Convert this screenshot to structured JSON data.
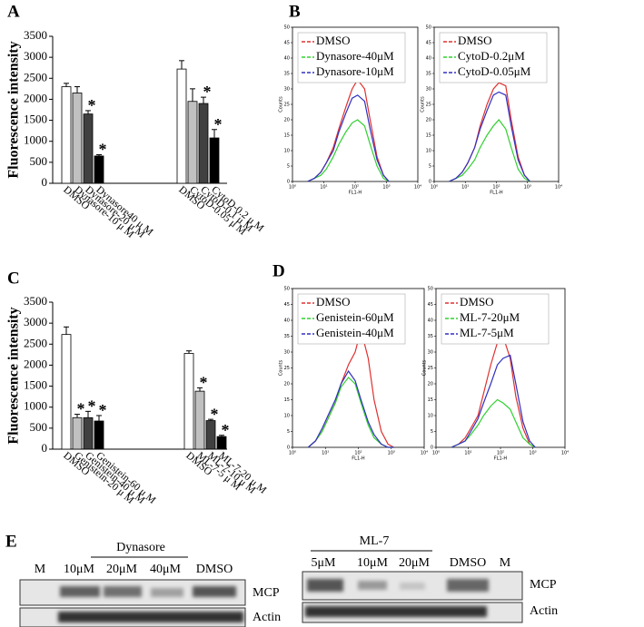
{
  "panel_labels": [
    "A",
    "B",
    "C",
    "D",
    "E"
  ],
  "chart_data": [
    {
      "type": "bar",
      "ylabel": "Fluorescence intensity",
      "ylim": [
        0,
        3500
      ],
      "yticks": [
        0,
        500,
        1000,
        1500,
        2000,
        2500,
        3000,
        3500
      ],
      "colors": [
        "#ffffff",
        "#c0c0c0",
        "#404040",
        "#000000"
      ],
      "groups": [
        {
          "categories": [
            "DMSO",
            "Dynasore-10 μ M",
            "Dynasore-20 μ M",
            "Dynasore40 μ M"
          ],
          "values": [
            2300,
            2150,
            1650,
            650
          ],
          "errors": [
            80,
            150,
            80,
            30
          ],
          "significance": [
            null,
            null,
            "*",
            "*"
          ]
        },
        {
          "categories": [
            "DMSO",
            "CytoD-0.05 μ M",
            "CytoD-0.1 μ M",
            "CytoD-0.2 μ M"
          ],
          "values": [
            2720,
            1950,
            1900,
            1080
          ],
          "errors": [
            200,
            300,
            150,
            200
          ],
          "significance": [
            null,
            null,
            "*",
            "*"
          ]
        }
      ]
    },
    {
      "type": "line",
      "ylabel": "Counts",
      "xlabel": "FL1-H",
      "log_x": true,
      "xlim": [
        1,
        10000
      ],
      "xticks": [
        {
          "value": 1,
          "label": "10⁰"
        },
        {
          "value": 10,
          "label": "10¹"
        },
        {
          "value": 100,
          "label": "10²"
        },
        {
          "value": 1000,
          "label": "10³"
        },
        {
          "value": 10000,
          "label": "10⁴"
        }
      ],
      "ylim": [
        0,
        50
      ],
      "yticks": [
        0,
        5,
        10,
        15,
        20,
        25,
        30,
        35,
        40,
        45,
        50
      ],
      "x": [
        3,
        5,
        8,
        12,
        20,
        30,
        50,
        80,
        120,
        200,
        300,
        500,
        800,
        1200
      ],
      "series": [
        {
          "name": "DMSO",
          "color": "#e03030",
          "values": [
            0,
            1,
            3,
            6,
            11,
            17,
            24,
            30,
            33,
            30,
            20,
            8,
            2,
            0
          ]
        },
        {
          "name": "Dynasore-40μM",
          "color": "#30d030",
          "values": [
            0,
            1,
            2,
            4,
            8,
            12,
            16,
            19,
            20,
            18,
            12,
            5,
            1,
            0
          ]
        },
        {
          "name": "Dynasore-10μM",
          "color": "#3030c0",
          "values": [
            0,
            1,
            3,
            6,
            10,
            16,
            22,
            27,
            28,
            26,
            17,
            7,
            2,
            0
          ]
        }
      ]
    },
    {
      "type": "line",
      "ylabel": "Counts",
      "xlabel": "FL1-H",
      "log_x": true,
      "xlim": [
        1,
        10000
      ],
      "xticks": [
        {
          "value": 1,
          "label": "10⁰"
        },
        {
          "value": 10,
          "label": "10¹"
        },
        {
          "value": 100,
          "label": "10²"
        },
        {
          "value": 1000,
          "label": "10³"
        },
        {
          "value": 10000,
          "label": "10⁴"
        }
      ],
      "ylim": [
        0,
        50
      ],
      "yticks": [
        0,
        5,
        10,
        15,
        20,
        25,
        30,
        35,
        40,
        45,
        50
      ],
      "x": [
        3,
        5,
        8,
        12,
        20,
        30,
        50,
        80,
        120,
        200,
        300,
        500,
        800,
        1200
      ],
      "series": [
        {
          "name": "DMSO",
          "color": "#e03030",
          "values": [
            0,
            1,
            3,
            6,
            11,
            18,
            25,
            30,
            32,
            31,
            20,
            8,
            2,
            0
          ]
        },
        {
          "name": "CytoD-0.2μM",
          "color": "#30d030",
          "values": [
            0,
            1,
            2,
            4,
            7,
            11,
            15,
            18,
            20,
            17,
            11,
            4,
            1,
            0
          ]
        },
        {
          "name": "CytoD-0.05μM",
          "color": "#3030c0",
          "values": [
            0,
            1,
            3,
            6,
            11,
            17,
            23,
            28,
            29,
            28,
            18,
            7,
            2,
            0
          ]
        }
      ]
    },
    {
      "type": "bar",
      "ylabel": "Fluorescence intensity",
      "ylim": [
        0,
        3500
      ],
      "yticks": [
        0,
        500,
        1000,
        1500,
        2000,
        2500,
        3000,
        3500
      ],
      "colors": [
        "#ffffff",
        "#c0c0c0",
        "#404040",
        "#000000"
      ],
      "groups": [
        {
          "categories": [
            "DMSO",
            "Genistein-20 μ M",
            "Genistein-40 μ M",
            "Genistein-60 μ M"
          ],
          "values": [
            2730,
            750,
            750,
            670
          ],
          "errors": [
            180,
            80,
            150,
            130
          ],
          "significance": [
            null,
            "*",
            "*",
            "*"
          ]
        },
        {
          "categories": [
            "DMSO",
            "ML-7-5 μ M",
            "ML-7-10 μ M",
            "ML-7-20 μ M"
          ],
          "values": [
            2280,
            1380,
            680,
            300
          ],
          "errors": [
            60,
            80,
            30,
            30
          ],
          "significance": [
            null,
            "*",
            "*",
            "*"
          ]
        }
      ]
    },
    {
      "type": "line",
      "ylabel": "Counts",
      "xlabel": "FL1-H",
      "log_x": true,
      "xlim": [
        1,
        10000
      ],
      "xticks": [
        {
          "value": 1,
          "label": "10⁰"
        },
        {
          "value": 10,
          "label": "10¹"
        },
        {
          "value": 100,
          "label": "10²"
        },
        {
          "value": 1000,
          "label": "10³"
        },
        {
          "value": 10000,
          "label": "10⁴"
        }
      ],
      "ylim": [
        0,
        50
      ],
      "yticks": [
        0,
        5,
        10,
        15,
        20,
        25,
        30,
        35,
        40,
        45,
        50
      ],
      "x": [
        3,
        5,
        8,
        12,
        20,
        30,
        50,
        80,
        120,
        200,
        300,
        500,
        800,
        1200
      ],
      "series": [
        {
          "name": "DMSO",
          "color": "#e03030",
          "values": [
            0,
            2,
            5,
            9,
            14,
            20,
            26,
            30,
            37,
            28,
            15,
            5,
            1,
            0
          ]
        },
        {
          "name": "Genistein-60μM",
          "color": "#30d030",
          "values": [
            0,
            2,
            5,
            9,
            14,
            19,
            22,
            20,
            14,
            7,
            3,
            1,
            0,
            0
          ]
        },
        {
          "name": "Genistein-40μM",
          "color": "#3030c0",
          "values": [
            0,
            2,
            6,
            10,
            15,
            20,
            24,
            21,
            15,
            8,
            4,
            1,
            0,
            0
          ]
        }
      ]
    },
    {
      "type": "line",
      "ylabel": "Counts",
      "xlabel": "FL1-H",
      "log_x": true,
      "xlim": [
        1,
        10000
      ],
      "xticks": [
        {
          "value": 1,
          "label": "10⁰"
        },
        {
          "value": 10,
          "label": "10¹"
        },
        {
          "value": 100,
          "label": "10²"
        },
        {
          "value": 1000,
          "label": "10³"
        },
        {
          "value": 10000,
          "label": "10⁴"
        }
      ],
      "ylim": [
        0,
        50
      ],
      "yticks": [
        0,
        5,
        10,
        15,
        20,
        25,
        30,
        35,
        40,
        45,
        50
      ],
      "x": [
        3,
        5,
        8,
        12,
        20,
        30,
        50,
        80,
        120,
        200,
        300,
        500,
        800,
        1200
      ],
      "series": [
        {
          "name": "DMSO",
          "color": "#e03030",
          "values": [
            0,
            1,
            3,
            6,
            10,
            17,
            26,
            33,
            35,
            28,
            16,
            6,
            1,
            0
          ]
        },
        {
          "name": "ML-7-20μM",
          "color": "#30d030",
          "values": [
            0,
            1,
            2,
            4,
            7,
            10,
            13,
            15,
            14,
            12,
            8,
            3,
            1,
            0
          ]
        },
        {
          "name": "ML-7-5μM",
          "color": "#3030c0",
          "values": [
            0,
            1,
            2,
            5,
            9,
            14,
            20,
            26,
            28,
            29,
            20,
            8,
            2,
            0
          ]
        }
      ]
    }
  ],
  "blots": [
    {
      "title": "Dynasore",
      "lanes": [
        "M",
        "10μM",
        "20μM",
        "40μM",
        "DMSO"
      ],
      "rows": [
        "MCP",
        "Actin"
      ]
    },
    {
      "title": "ML-7",
      "lanes": [
        "5μM",
        "10μM",
        "20μM",
        "DMSO",
        "M"
      ],
      "rows": [
        "MCP",
        "Actin"
      ]
    }
  ]
}
